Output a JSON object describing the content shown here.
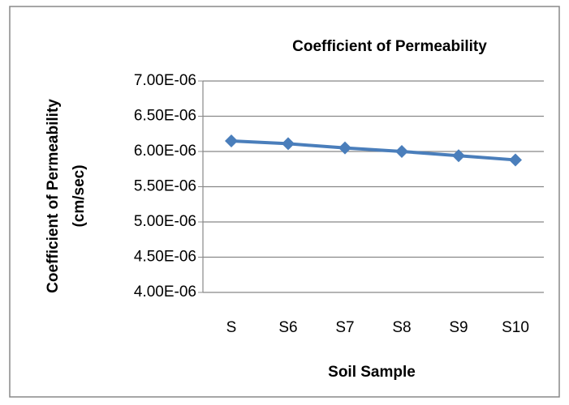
{
  "chart_data": {
    "type": "line",
    "title": "Coefficient of Permeability",
    "xlabel": "Soil Sample",
    "ylabel": [
      "Coefficient of Permeability",
      "(cm/sec)"
    ],
    "categories": [
      "S",
      "S6",
      "S7",
      "S8",
      "S9",
      "S10"
    ],
    "series": [
      {
        "name": "Coefficient of Permeability",
        "color": "#4a7ebb",
        "values": [
          6.15e-06,
          6.11e-06,
          6.05e-06,
          6e-06,
          5.94e-06,
          5.88e-06
        ]
      }
    ],
    "ylim": [
      4e-06,
      7e-06
    ],
    "yticks": [
      {
        "value": 4e-06,
        "label": "4.00E-06"
      },
      {
        "value": 4.5e-06,
        "label": "4.50E-06"
      },
      {
        "value": 5e-06,
        "label": "5.00E-06"
      },
      {
        "value": 5.5e-06,
        "label": "5.50E-06"
      },
      {
        "value": 6e-06,
        "label": "6.00E-06"
      },
      {
        "value": 6.5e-06,
        "label": "6.50E-06"
      },
      {
        "value": 7e-06,
        "label": "7.00E-06"
      }
    ],
    "grid": true
  }
}
